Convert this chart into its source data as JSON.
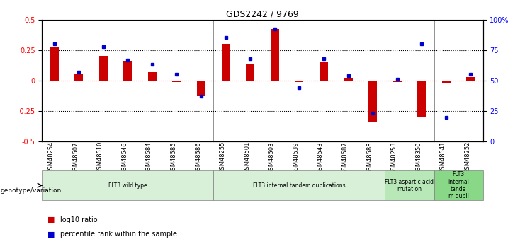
{
  "title": "GDS2242 / 9769",
  "samples": [
    "GSM48254",
    "GSM48507",
    "GSM48510",
    "GSM48546",
    "GSM48584",
    "GSM48585",
    "GSM48586",
    "GSM48255",
    "GSM48501",
    "GSM48503",
    "GSM48539",
    "GSM48543",
    "GSM48587",
    "GSM48588",
    "GSM48253",
    "GSM48350",
    "GSM48541",
    "GSM48252"
  ],
  "log10_ratio": [
    0.27,
    0.06,
    0.2,
    0.16,
    0.07,
    -0.01,
    -0.13,
    0.3,
    0.13,
    0.42,
    -0.01,
    0.15,
    0.02,
    -0.34,
    -0.01,
    -0.3,
    -0.02,
    0.03
  ],
  "percentile_rank": [
    80,
    57,
    78,
    67,
    63,
    55,
    37,
    85,
    68,
    92,
    44,
    68,
    54,
    23,
    51,
    80,
    20,
    55
  ],
  "groups": [
    {
      "label": "FLT3 wild type",
      "start": 0,
      "end": 7,
      "color": "#d8f0d8"
    },
    {
      "label": "FLT3 internal tandem duplications",
      "start": 7,
      "end": 14,
      "color": "#d8f0d8"
    },
    {
      "label": "FLT3 aspartic acid\nmutation",
      "start": 14,
      "end": 16,
      "color": "#b8e8b8"
    },
    {
      "label": "FLT3\ninternal\ntande\nm dupli",
      "start": 16,
      "end": 18,
      "color": "#88d888"
    }
  ],
  "bar_color_red": "#cc0000",
  "bar_color_blue": "#0000cc",
  "ylim_left": [
    -0.5,
    0.5
  ],
  "ylim_right": [
    0,
    100
  ],
  "yticks_left": [
    -0.5,
    -0.25,
    0.0,
    0.25,
    0.5
  ],
  "ytick_labels_left": [
    "-0.5",
    "-0.25",
    "0",
    "0.25",
    "0.5"
  ],
  "yticks_right": [
    0,
    25,
    50,
    75,
    100
  ],
  "ytick_labels_right": [
    "0",
    "25",
    "50",
    "75",
    "100%"
  ],
  "hlines_black": [
    0.25,
    -0.25
  ],
  "legend_items": [
    "log10 ratio",
    "percentile rank within the sample"
  ],
  "bar_width": 0.35,
  "group_boundaries": [
    7,
    14,
    16
  ]
}
